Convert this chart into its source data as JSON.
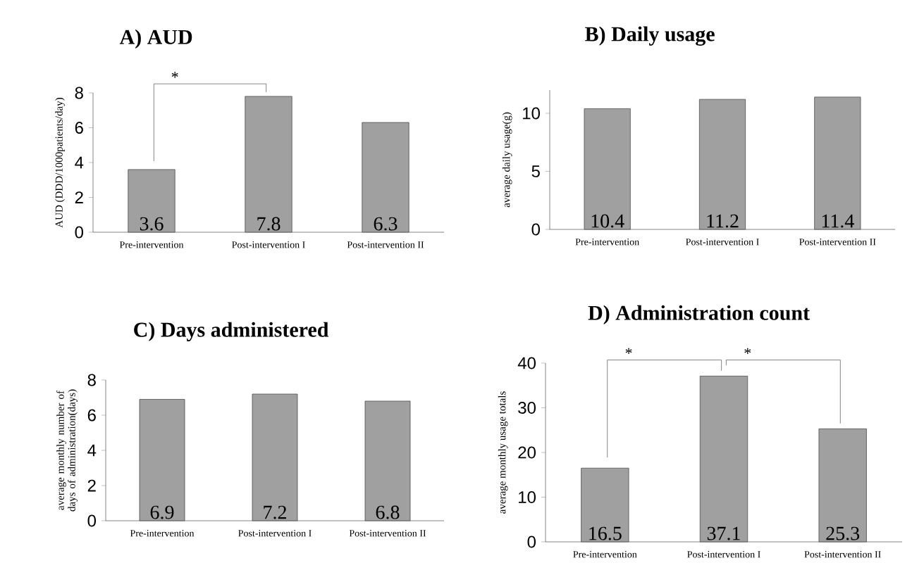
{
  "chart_data": [
    {
      "type": "bar",
      "title": "A) AUD",
      "ylabel": "AUD (DDD/1000patients/day)",
      "categories": [
        "Pre-intervention",
        "Post-intervention I",
        "Post-intervention II"
      ],
      "values": [
        3.6,
        7.8,
        6.3
      ],
      "color": "#a0a0a0",
      "ylim": [
        0,
        8
      ],
      "yticks": [
        0,
        2,
        4,
        6,
        8
      ],
      "data_labels": true,
      "annotations": [
        "*"
      ]
    },
    {
      "type": "bar",
      "title": "B) Daily usage",
      "ylabel": "average daily usage(g)",
      "categories": [
        "Pre-intervention",
        "Post-intervention I",
        "Post-intervention II"
      ],
      "values": [
        10.4,
        11.2,
        11.4
      ],
      "color": "#a0a0a0",
      "ylim": [
        0,
        12
      ],
      "yticks": [
        0,
        5,
        10
      ],
      "data_labels": true
    },
    {
      "type": "bar",
      "title": "C) Days administered",
      "ylabel": "average monthly number of days of administration(days)",
      "categories": [
        "Pre-intervention",
        "Post-intervention I",
        "Post-intervention II"
      ],
      "values": [
        6.9,
        7.2,
        6.8
      ],
      "color": "#a0a0a0",
      "ylim": [
        0,
        8
      ],
      "yticks": [
        0,
        2,
        4,
        6,
        8
      ],
      "data_labels": true
    },
    {
      "type": "bar",
      "title": "D) Administration count",
      "ylabel": "average monthly usage totals",
      "categories": [
        "Pre-intervention",
        "Post-intervention I",
        "Post-intervention II"
      ],
      "values": [
        16.5,
        37.1,
        25.3
      ],
      "color": "#a0a0a0",
      "ylim": [
        0,
        40
      ],
      "yticks": [
        0,
        10,
        20,
        30,
        40
      ],
      "data_labels": true,
      "annotations": [
        "*",
        "*"
      ]
    }
  ]
}
